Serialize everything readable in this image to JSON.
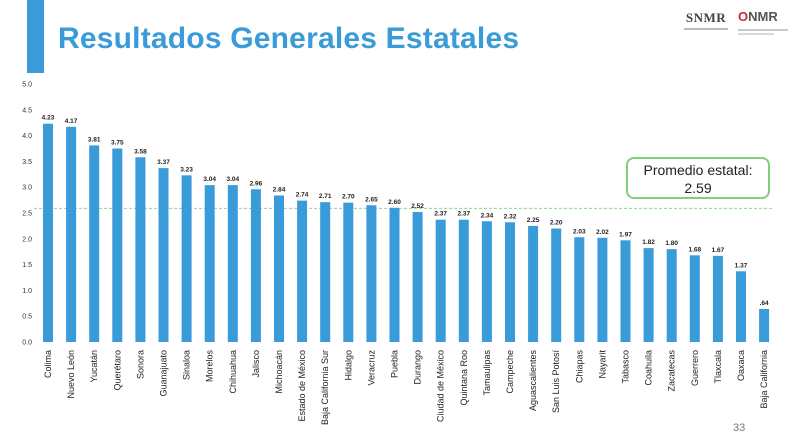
{
  "slide": {
    "title": "Resultados Generales Estatales",
    "page_number": "33"
  },
  "logos": {
    "logo1": "SNMR",
    "logo2_prefix": "O",
    "logo2_text": "NMR"
  },
  "callout": {
    "line1": "Promedio estatal:",
    "line2": "2.59"
  },
  "colors": {
    "accent": "#3a9bd9",
    "bar": "#3a9bd9",
    "average_line": "#8fd68a",
    "callout_border": "#7fd07a"
  },
  "chart_data": {
    "type": "bar",
    "title": "",
    "xlabel": "",
    "ylabel": "",
    "ylim": [
      0,
      5
    ],
    "yticks": [
      "0.0",
      "0.5",
      "1.0",
      "1.5",
      "2.0",
      "2.5",
      "3.0",
      "3.5",
      "4.0",
      "4.5",
      "5.0"
    ],
    "grid": false,
    "average_line": 2.59,
    "categories": [
      "Colima",
      "Nuevo León",
      "Yucatán",
      "Querétaro",
      "Sonora",
      "Guanajuato",
      "Sinaloa",
      "Morelos",
      "Chihuahua",
      "Jalisco",
      "Michoacán",
      "Estado de México",
      "Baja California Sur",
      "Hidalgo",
      "Veracruz",
      "Puebla",
      "Durango",
      "Ciudad de México",
      "Quintana Roo",
      "Tamaulipas",
      "Campeche",
      "Aguascalientes",
      "San Luis Potosí",
      "Chiapas",
      "Nayarit",
      "Tabasco",
      "Coahuila",
      "Zacatecas",
      "Guerrero",
      "Tlaxcala",
      "Oaxaca",
      "Baja California"
    ],
    "values": [
      4.23,
      4.17,
      3.81,
      3.75,
      3.58,
      3.37,
      3.23,
      3.04,
      3.04,
      2.96,
      2.84,
      2.74,
      2.71,
      2.7,
      2.65,
      2.6,
      2.52,
      2.37,
      2.37,
      2.34,
      2.32,
      2.25,
      2.2,
      2.03,
      2.02,
      1.97,
      1.82,
      1.8,
      1.68,
      1.67,
      1.37,
      0.64
    ],
    "data_labels": [
      "4.23",
      "4.17",
      "3.81",
      "3.75",
      "3.58",
      "3.37",
      "3.23",
      "3.04",
      "3.04",
      "2.96",
      "2.84",
      "2.74",
      "2.71",
      "2.70",
      "2.65",
      "2.60",
      "2.52",
      "2.37",
      "2.37",
      "2.34",
      "2.32",
      "2.25",
      "2.20",
      "2.03",
      "2.02",
      "1.97",
      "1.82",
      "1.80",
      "1.68",
      "1.67",
      "1.37",
      ".64"
    ]
  }
}
